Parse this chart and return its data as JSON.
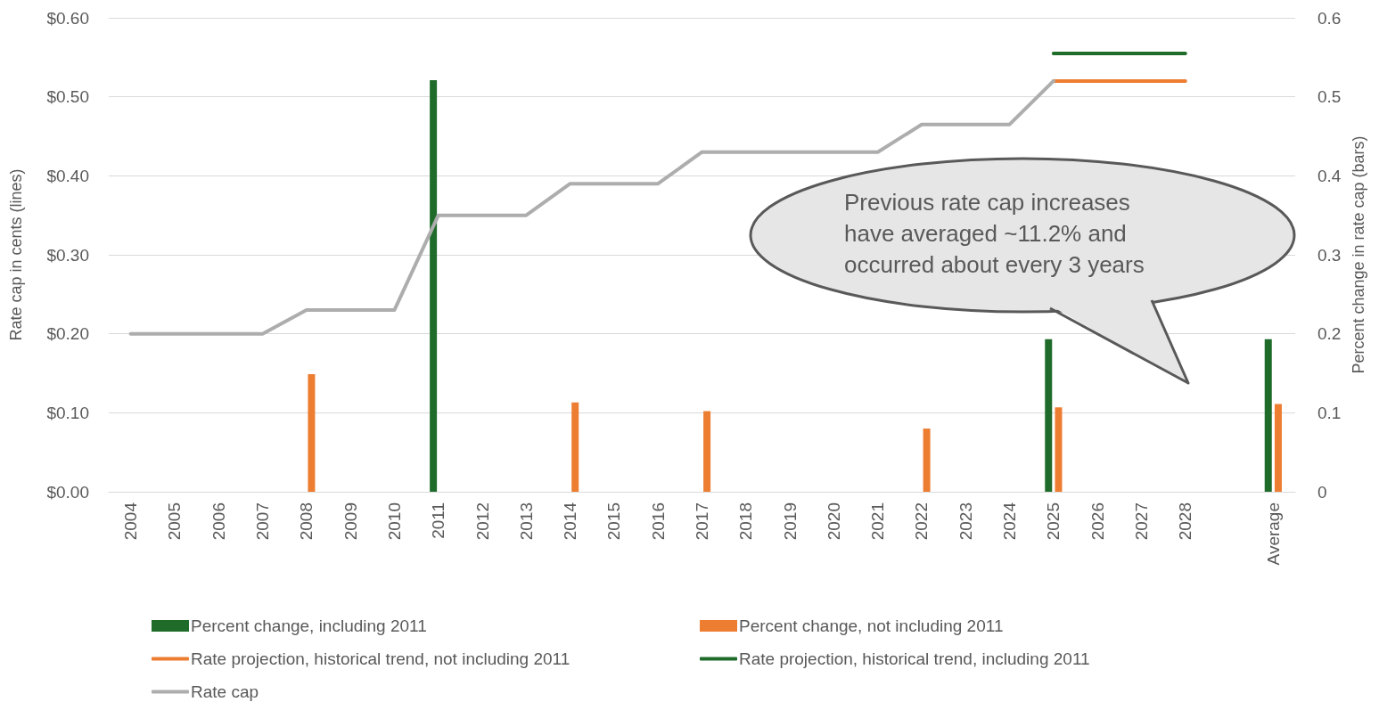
{
  "chart_data": {
    "type": "bar",
    "categories": [
      "2004",
      "2005",
      "2006",
      "2007",
      "2008",
      "2009",
      "2010",
      "2011",
      "2012",
      "2013",
      "2014",
      "2015",
      "2016",
      "2017",
      "2018",
      "2019",
      "2020",
      "2021",
      "2022",
      "2023",
      "2024",
      "2025",
      "2026",
      "2027",
      "2028",
      null,
      "Average"
    ],
    "series": [
      {
        "name": "Percent change, including 2011",
        "axis": "y2",
        "color": "#1e6b2a",
        "values": [
          null,
          null,
          null,
          null,
          null,
          null,
          null,
          0.521,
          null,
          null,
          null,
          null,
          null,
          null,
          null,
          null,
          null,
          null,
          null,
          null,
          null,
          0.193,
          null,
          null,
          null,
          null,
          0.193
        ]
      },
      {
        "name": "Percent change, not including 2011",
        "axis": "y2",
        "color": "#ed7d31",
        "values": [
          null,
          null,
          null,
          null,
          0.149,
          null,
          null,
          null,
          null,
          null,
          0.113,
          null,
          null,
          0.102,
          null,
          null,
          null,
          null,
          0.08,
          null,
          null,
          0.107,
          null,
          null,
          null,
          null,
          0.111
        ]
      },
      {
        "name": "Rate projection, historical trend, not including 2011",
        "type": "line",
        "color": "#ed7d31",
        "values": [
          null,
          null,
          null,
          null,
          null,
          null,
          null,
          null,
          null,
          null,
          null,
          null,
          null,
          null,
          null,
          null,
          null,
          null,
          null,
          null,
          null,
          0.52,
          0.52,
          0.52,
          0.52,
          null,
          null
        ]
      },
      {
        "name": "Rate projection, historical trend, including 2011",
        "type": "line",
        "color": "#1e6b2a",
        "values": [
          null,
          null,
          null,
          null,
          null,
          null,
          null,
          null,
          null,
          null,
          null,
          null,
          null,
          null,
          null,
          null,
          null,
          null,
          null,
          null,
          null,
          0.555,
          0.555,
          0.555,
          0.555,
          null,
          null
        ]
      },
      {
        "name": "Rate cap",
        "type": "line",
        "color": "#adadad",
        "values": [
          0.2,
          0.2,
          0.2,
          0.2,
          0.23,
          0.23,
          0.23,
          0.35,
          0.35,
          0.35,
          0.39,
          0.39,
          0.39,
          0.43,
          0.43,
          0.43,
          0.43,
          0.43,
          0.465,
          0.465,
          0.465,
          0.52,
          null,
          null,
          null,
          null,
          null
        ]
      }
    ],
    "ylabel": "Rate cap in cents (lines)",
    "y2label": "Percent change in rate cap (bars)",
    "ylim": [
      0,
      0.6
    ],
    "yticks": [
      {
        "value": 0,
        "label": "$0.00"
      },
      {
        "value": 0.1,
        "label": "$0.10"
      },
      {
        "value": 0.2,
        "label": "$0.20"
      },
      {
        "value": 0.3,
        "label": "$0.30"
      },
      {
        "value": 0.4,
        "label": "$0.40"
      },
      {
        "value": 0.5,
        "label": "$0.50"
      },
      {
        "value": 0.6,
        "label": "$0.60"
      }
    ],
    "y2lim": [
      0,
      0.6
    ],
    "y2ticks": [
      0,
      0.1,
      0.2,
      0.3,
      0.4,
      0.5,
      0.6
    ],
    "annotations": [
      "Previous rate cap increases have averaged ~11.2% and occurred about every 3 years"
    ],
    "grid": "y",
    "legend": "bottom",
    "marker": "none"
  }
}
